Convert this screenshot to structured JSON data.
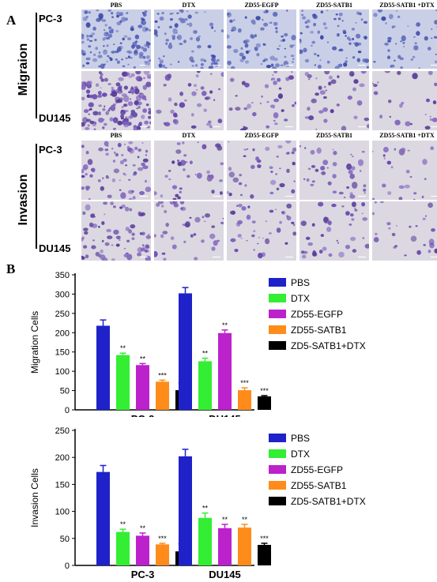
{
  "panel_a": {
    "letter": "A",
    "columns": [
      "PBS",
      "DTX",
      "ZD55-EGFP",
      "ZD55-SATB1",
      "ZD55-SATB1 +DTX"
    ],
    "sections": [
      {
        "label": "Migraion",
        "rows": [
          "PC-3",
          "DU145"
        ]
      },
      {
        "label": "Invasion",
        "rows": [
          "PC-3",
          "DU145"
        ]
      }
    ]
  },
  "panel_b": {
    "letter": "B"
  },
  "colors": {
    "PBS": "#1f22c8",
    "DTX": "#33ee33",
    "ZD55-EGFP": "#bb22cc",
    "ZD55-SATB1": "#ff8c1a",
    "ZD5-SATB1+DTX": "#000000"
  },
  "chart_data": [
    {
      "type": "bar",
      "ylabel": "Migration Cells",
      "categories": [
        "PC-3",
        "DU145"
      ],
      "ylim": [
        0,
        350
      ],
      "yticks": [
        0,
        50,
        100,
        150,
        200,
        250,
        300,
        350
      ],
      "legend_position": "top-right",
      "series": [
        {
          "name": "PBS",
          "values": [
            218,
            302
          ],
          "errors": [
            15,
            15
          ],
          "labels": [
            "",
            ""
          ]
        },
        {
          "name": "DTX",
          "values": [
            142,
            126
          ],
          "errors": [
            5,
            8
          ],
          "labels": [
            "**",
            "**"
          ]
        },
        {
          "name": "ZD55-EGFP",
          "values": [
            116,
            199
          ],
          "errors": [
            4,
            8
          ],
          "labels": [
            "**",
            "**"
          ]
        },
        {
          "name": "ZD55-SATB1",
          "values": [
            73,
            51
          ],
          "errors": [
            4,
            6
          ],
          "labels": [
            "***",
            "***"
          ]
        },
        {
          "name": "ZD5-SATB1+DTX",
          "values": [
            51,
            35
          ],
          "errors": [
            2,
            2
          ],
          "labels": [
            "***",
            "***"
          ]
        }
      ]
    },
    {
      "type": "bar",
      "ylabel": "Invasion Cells",
      "categories": [
        "PC-3",
        "DU145"
      ],
      "ylim": [
        0,
        250
      ],
      "yticks": [
        0,
        50,
        100,
        150,
        200,
        250
      ],
      "legend_position": "top-right",
      "series": [
        {
          "name": "PBS",
          "values": [
            173,
            202
          ],
          "errors": [
            12,
            13
          ],
          "labels": [
            "",
            ""
          ]
        },
        {
          "name": "DTX",
          "values": [
            62,
            88
          ],
          "errors": [
            5,
            9
          ],
          "labels": [
            "**",
            "**"
          ]
        },
        {
          "name": "ZD55-EGFP",
          "values": [
            55,
            69
          ],
          "errors": [
            5,
            7
          ],
          "labels": [
            "**",
            "**"
          ]
        },
        {
          "name": "ZD55-SATB1",
          "values": [
            39,
            70
          ],
          "errors": [
            2,
            6
          ],
          "labels": [
            "***",
            "**"
          ]
        },
        {
          "name": "ZD5-SATB1+DTX",
          "values": [
            26,
            38
          ],
          "errors": [
            2,
            3
          ],
          "labels": [
            "***",
            "***"
          ]
        }
      ]
    }
  ]
}
